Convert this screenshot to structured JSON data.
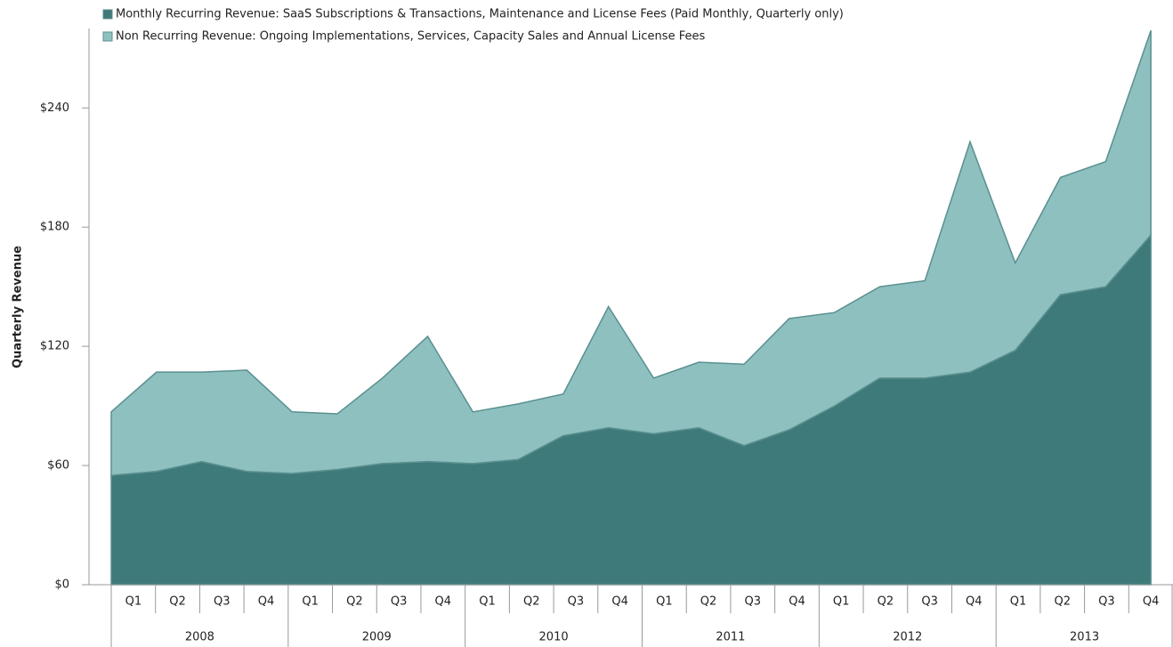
{
  "chart_data": {
    "type": "stacked_area",
    "y_axis_label": "Quarterly Revenue",
    "categories": [
      "Q1",
      "Q2",
      "Q3",
      "Q4",
      "Q1",
      "Q2",
      "Q3",
      "Q4",
      "Q1",
      "Q2",
      "Q3",
      "Q4",
      "Q1",
      "Q2",
      "Q3",
      "Q4",
      "Q1",
      "Q2",
      "Q3",
      "Q4",
      "Q1",
      "Q2",
      "Q3",
      "Q4"
    ],
    "groups": [
      "2008",
      "2009",
      "2010",
      "2011",
      "2012",
      "2013"
    ],
    "series": [
      {
        "name": "Monthly Recurring Revenue: SaaS Subscriptions & Transactions, Maintenance and License Fees (Paid Monthly, Quarterly only)",
        "color": "#3f7a7a",
        "values": [
          55,
          57,
          62,
          57,
          56,
          58,
          61,
          62,
          61,
          63,
          75,
          79,
          76,
          79,
          70,
          78,
          90,
          104,
          104,
          107,
          118,
          146,
          150,
          176
        ]
      },
      {
        "name": "Non Recurring Revenue: Ongoing Implementations, Services, Capacity Sales and Annual License Fees",
        "color": "#8fc0c0",
        "values": [
          32,
          50,
          45,
          51,
          31,
          28,
          43,
          63,
          26,
          28,
          21,
          61,
          28,
          33,
          41,
          56,
          47,
          46,
          49,
          116,
          44,
          59,
          63,
          103
        ]
      }
    ],
    "ylim": [
      0,
      280
    ],
    "yticks": [
      {
        "value": 0,
        "label": "$0"
      },
      {
        "value": 60,
        "label": "$60"
      },
      {
        "value": 120,
        "label": "$120"
      },
      {
        "value": 180,
        "label": "$180"
      },
      {
        "value": 240,
        "label": "$240"
      }
    ],
    "legend": "top-left"
  }
}
